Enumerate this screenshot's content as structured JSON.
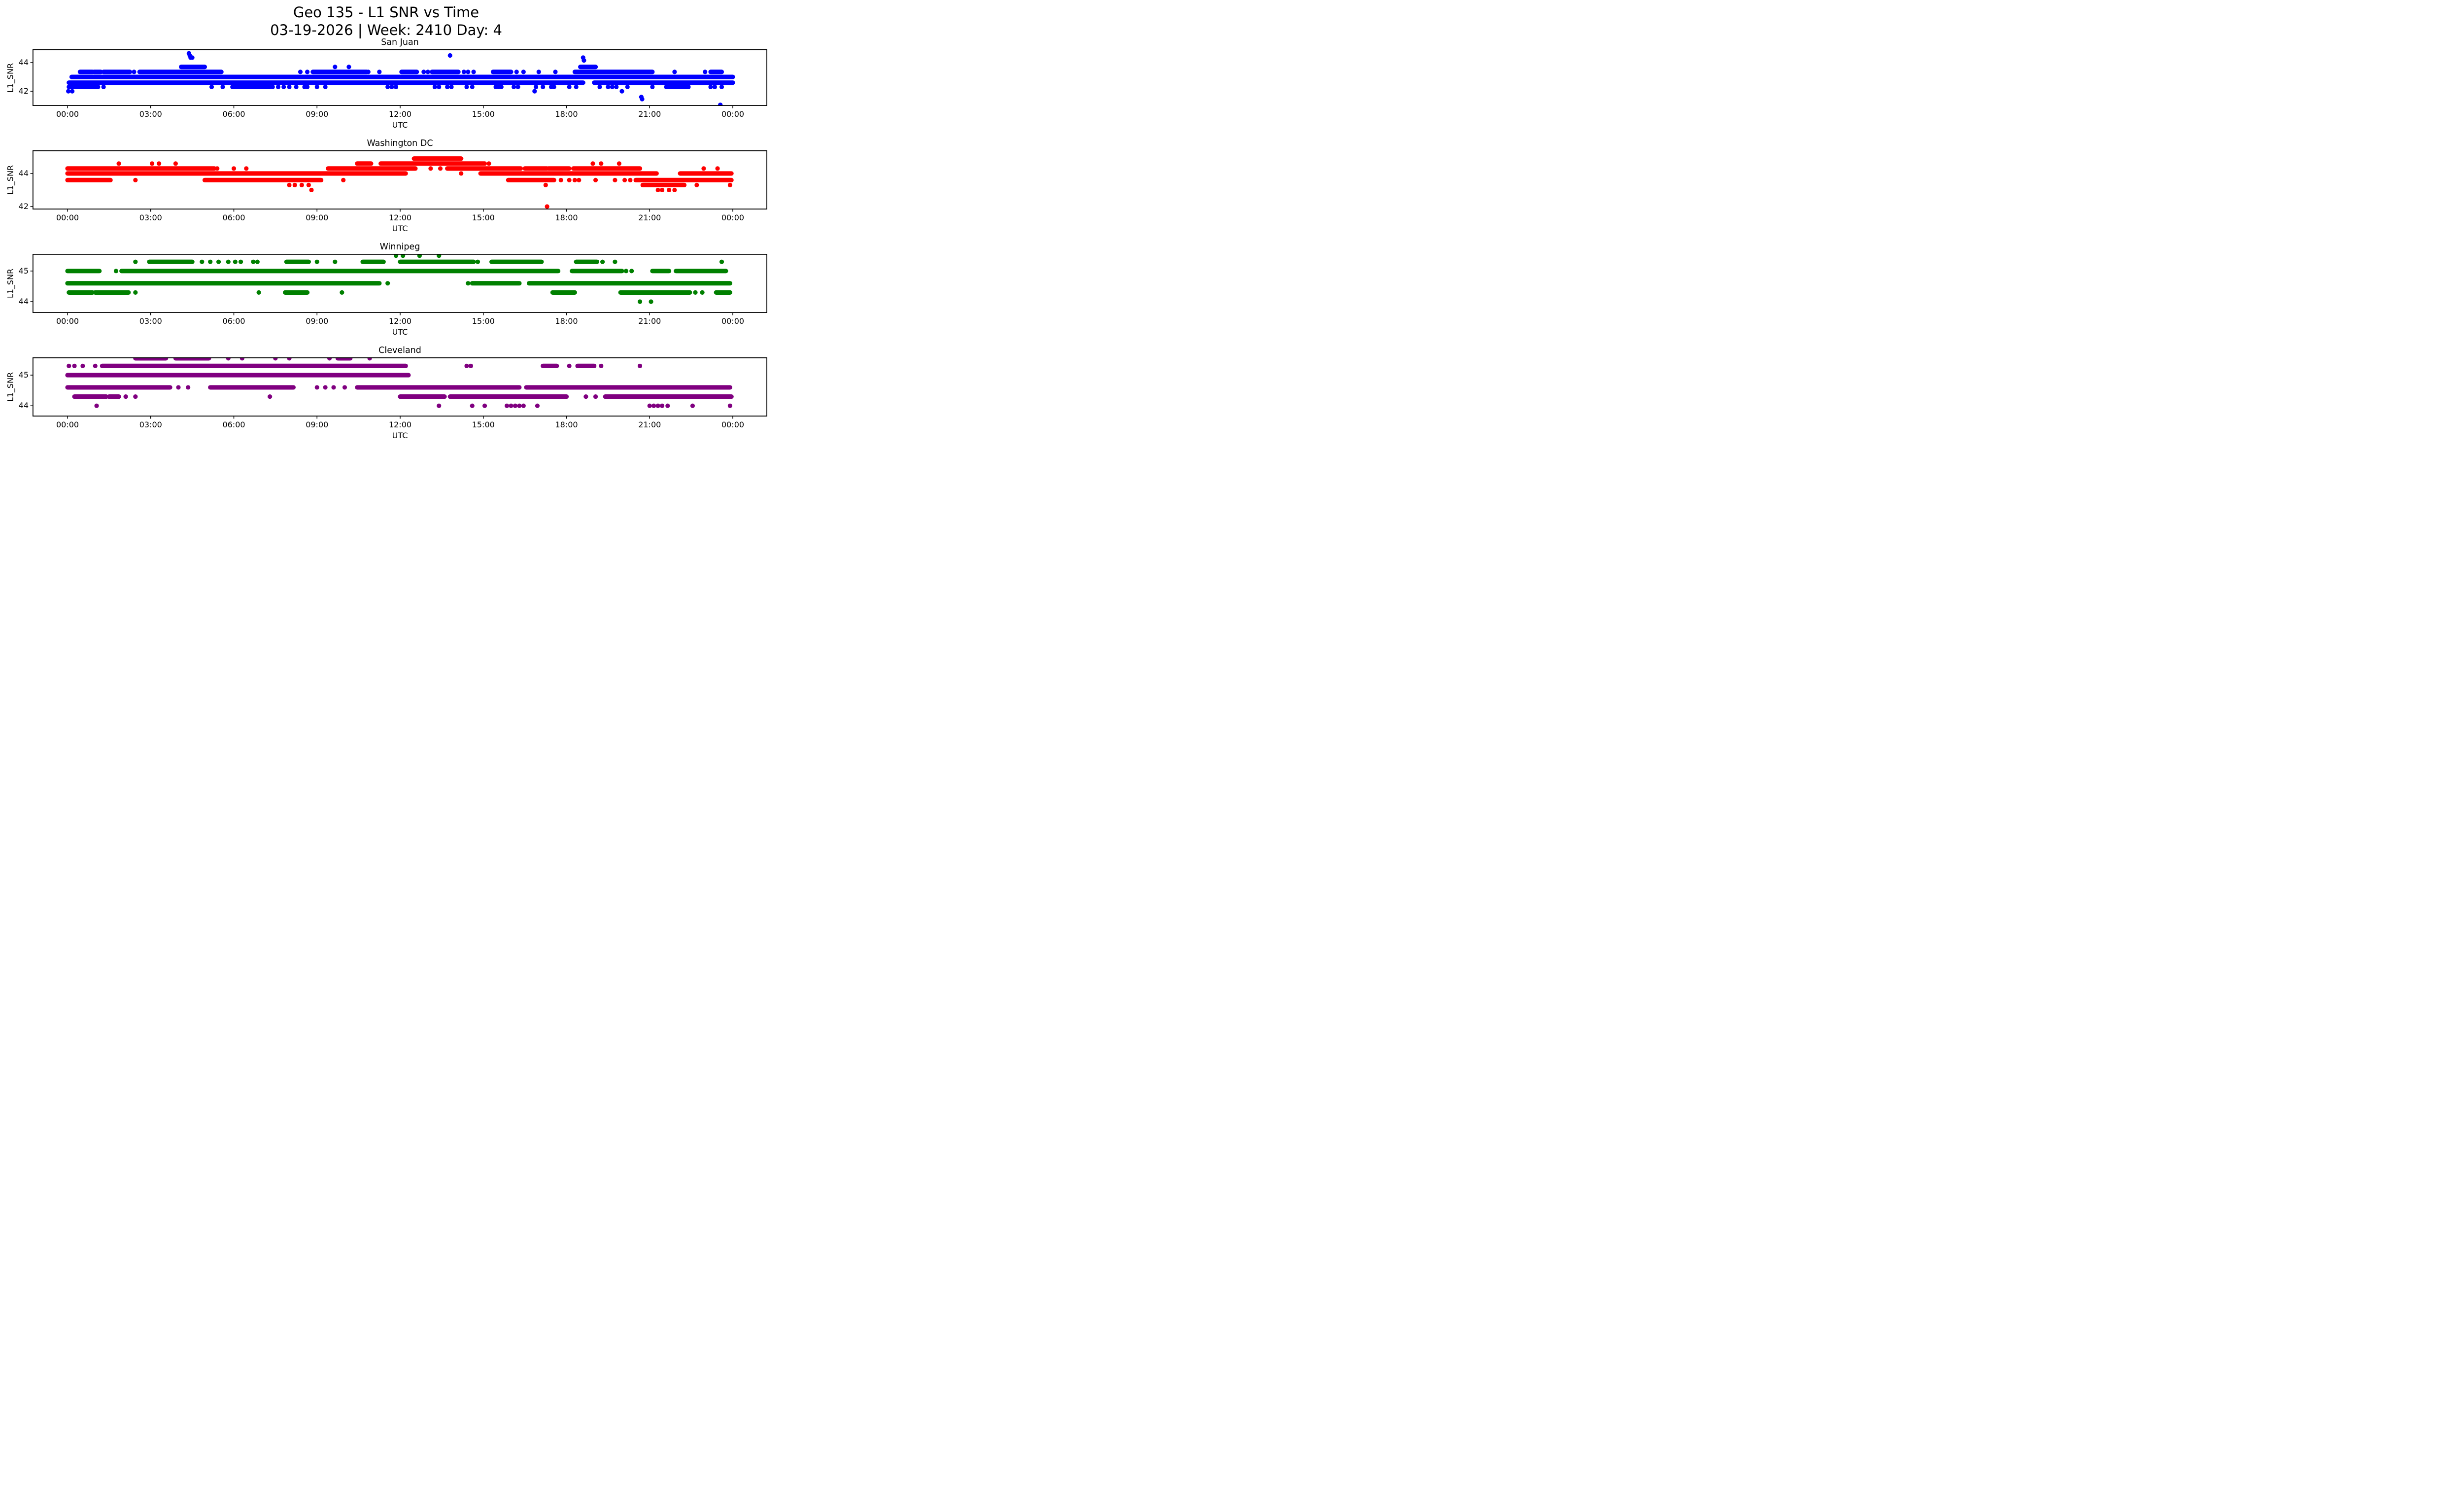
{
  "title": {
    "line1": "Geo 135 - L1 SNR vs Time",
    "line2": "03-19-2026 | Week: 2410 Day: 4"
  },
  "axis": {
    "xlabel": "UTC",
    "ylabel": "L1_SNR",
    "xtick_labels": [
      "00:00",
      "03:00",
      "06:00",
      "09:00",
      "12:00",
      "15:00",
      "18:00",
      "21:00",
      "00:00"
    ],
    "xtick_hours": [
      0,
      3,
      6,
      9,
      12,
      15,
      18,
      21,
      24
    ]
  },
  "chart_data": [
    {
      "type": "scatter",
      "title": "San Juan",
      "color": "#0000ff",
      "xlabel": "UTC",
      "ylabel": "L1_SNR",
      "ylim": [
        40.97,
        44.93
      ],
      "yticks": [
        42,
        44
      ],
      "xlim_hours": [
        0,
        24
      ],
      "bands": [
        {
          "snr": 44.65,
          "segments": [],
          "dots": [
            4.38
          ]
        },
        {
          "snr": 44.5,
          "segments": [],
          "dots": [
            4.41,
            13.8
          ]
        },
        {
          "snr": 44.35,
          "segments": [],
          "dots": [
            4.44,
            4.5,
            18.6
          ]
        },
        {
          "snr": 44.15,
          "segments": [],
          "dots": [
            18.63
          ]
        },
        {
          "snr": 43.7,
          "segments": [
            [
              4.1,
              4.95
            ],
            [
              18.5,
              19.05
            ]
          ],
          "dots": [
            9.65,
            10.15
          ]
        },
        {
          "snr": 43.35,
          "segments": [
            [
              0.45,
              0.9
            ],
            [
              0.95,
              1.2
            ],
            [
              1.3,
              2.25
            ],
            [
              2.6,
              5.55
            ],
            [
              8.85,
              10.8
            ],
            [
              12.05,
              12.6
            ],
            [
              13.15,
              14.1
            ],
            [
              15.35,
              16.0
            ],
            [
              18.3,
              21.1
            ],
            [
              23.2,
              23.6
            ]
          ],
          "dots": [
            2.4,
            8.4,
            8.65,
            10.85,
            11.25,
            12.85,
            13.0,
            14.3,
            14.45,
            14.65,
            16.2,
            16.45,
            17.0,
            17.6,
            21.9,
            23.0
          ]
        },
        {
          "snr": 43.0,
          "segments": [
            [
              0.15,
              24.0
            ]
          ],
          "dots": []
        },
        {
          "snr": 42.6,
          "segments": [
            [
              0.05,
              18.6
            ],
            [
              19.0,
              24.0
            ]
          ],
          "dots": []
        },
        {
          "snr": 42.3,
          "segments": [
            [
              0.05,
              1.1
            ],
            [
              5.95,
              7.3
            ],
            [
              21.6,
              22.4
            ]
          ],
          "dots": [
            1.3,
            5.2,
            5.6,
            7.4,
            7.6,
            7.8,
            8.0,
            8.25,
            8.55,
            8.65,
            9.0,
            9.3,
            11.55,
            11.7,
            11.85,
            13.25,
            13.4,
            13.7,
            13.85,
            14.4,
            14.6,
            15.45,
            15.55,
            15.65,
            16.1,
            16.25,
            16.9,
            17.15,
            17.45,
            17.55,
            18.1,
            18.35,
            19.2,
            19.5,
            19.65,
            19.8,
            20.2,
            21.1,
            23.2,
            23.35,
            23.6
          ]
        },
        {
          "snr": 42.0,
          "segments": [],
          "dots": [
            0.03,
            0.17,
            16.85,
            20.0
          ]
        },
        {
          "snr": 41.6,
          "segments": [],
          "dots": [
            20.7
          ]
        },
        {
          "snr": 41.45,
          "segments": [],
          "dots": [
            20.73
          ]
        },
        {
          "snr": 41.05,
          "segments": [],
          "dots": [
            23.55
          ]
        }
      ]
    },
    {
      "type": "scatter",
      "title": "Washington DC",
      "color": "#ff0000",
      "xlabel": "UTC",
      "ylabel": "L1_SNR",
      "ylim": [
        41.82,
        45.4
      ],
      "yticks": [
        42,
        44
      ],
      "xlim_hours": [
        0,
        24
      ],
      "bands": [
        {
          "snr": 44.9,
          "segments": [
            [
              12.5,
              14.2
            ]
          ],
          "dots": []
        },
        {
          "snr": 44.6,
          "segments": [
            [
              10.45,
              10.95
            ],
            [
              11.3,
              15.05
            ]
          ],
          "dots": [
            1.85,
            3.05,
            3.3,
            3.9,
            15.2,
            18.95,
            19.25,
            19.9
          ]
        },
        {
          "snr": 44.3,
          "segments": [
            [
              0.0,
              5.3
            ],
            [
              9.4,
              12.55
            ],
            [
              13.7,
              16.35
            ],
            [
              16.5,
              17.3
            ],
            [
              17.35,
              18.1
            ],
            [
              18.25,
              20.65
            ]
          ],
          "dots": [
            5.4,
            6.0,
            6.45,
            13.1,
            13.45,
            22.95,
            23.45
          ]
        },
        {
          "snr": 44.0,
          "segments": [
            [
              0.0,
              12.2
            ],
            [
              14.9,
              21.25
            ],
            [
              22.1,
              23.95
            ]
          ],
          "dots": [
            14.2
          ]
        },
        {
          "snr": 43.6,
          "segments": [
            [
              0.0,
              1.55
            ],
            [
              4.95,
              9.15
            ],
            [
              15.9,
              17.55
            ],
            [
              20.5,
              23.95
            ]
          ],
          "dots": [
            2.45,
            9.95,
            17.8,
            18.1,
            18.3,
            18.45,
            19.05,
            19.75,
            20.1,
            20.3
          ]
        },
        {
          "snr": 43.3,
          "segments": [
            [
              20.75,
              22.25
            ]
          ],
          "dots": [
            8.0,
            8.2,
            8.45,
            8.7,
            17.25,
            22.7,
            23.9
          ]
        },
        {
          "snr": 43.0,
          "segments": [],
          "dots": [
            8.8,
            21.3,
            21.45,
            21.7,
            21.9
          ]
        },
        {
          "snr": 42.0,
          "segments": [],
          "dots": [
            17.3
          ]
        }
      ]
    },
    {
      "type": "scatter",
      "title": "Winnipeg",
      "color": "#008000",
      "xlabel": "UTC",
      "ylabel": "L1_SNR",
      "ylim": [
        43.63,
        45.56
      ],
      "yticks": [
        44,
        45
      ],
      "xlim_hours": [
        0,
        24
      ],
      "bands": [
        {
          "snr": 45.5,
          "segments": [],
          "dots": [
            11.85,
            12.1,
            12.7,
            13.4
          ]
        },
        {
          "snr": 45.3,
          "segments": [
            [
              2.95,
              4.5
            ],
            [
              7.9,
              8.7
            ],
            [
              10.65,
              11.4
            ],
            [
              12.0,
              14.65
            ],
            [
              15.3,
              17.1
            ],
            [
              18.35,
              19.1
            ]
          ],
          "dots": [
            2.45,
            4.85,
            5.15,
            5.45,
            5.8,
            6.05,
            6.25,
            6.7,
            6.85,
            9.0,
            9.65,
            14.8,
            19.3,
            19.75,
            23.6
          ]
        },
        {
          "snr": 45.0,
          "segments": [
            [
              0.0,
              1.15
            ],
            [
              1.95,
              17.7
            ],
            [
              18.2,
              20.0
            ],
            [
              21.1,
              21.7
            ],
            [
              21.95,
              23.75
            ]
          ],
          "dots": [
            1.75,
            20.15,
            20.35
          ]
        },
        {
          "snr": 44.6,
          "segments": [
            [
              0.0,
              11.25
            ],
            [
              14.6,
              16.3
            ],
            [
              16.65,
              23.9
            ]
          ],
          "dots": [
            11.55,
            14.45
          ]
        },
        {
          "snr": 44.3,
          "segments": [
            [
              0.05,
              0.9
            ],
            [
              1.0,
              2.2
            ],
            [
              7.85,
              8.65
            ],
            [
              17.5,
              18.3
            ],
            [
              19.95,
              22.45
            ],
            [
              23.4,
              23.9
            ]
          ],
          "dots": [
            2.45,
            6.9,
            9.9,
            22.65,
            22.9
          ]
        },
        {
          "snr": 44.0,
          "segments": [],
          "dots": [
            20.65,
            21.05
          ]
        }
      ]
    },
    {
      "type": "scatter",
      "title": "Cleveland",
      "color": "#800080",
      "xlabel": "UTC",
      "ylabel": "L1_SNR",
      "ylim": [
        43.65,
        45.58
      ],
      "yticks": [
        44,
        45
      ],
      "xlim_hours": [
        0,
        24
      ],
      "bands": [
        {
          "snr": 45.55,
          "segments": [
            [
              2.45,
              3.55
            ],
            [
              3.9,
              5.1
            ],
            [
              9.75,
              10.2
            ]
          ],
          "dots": [
            5.8,
            6.3,
            7.5,
            8.0,
            9.45,
            10.9
          ]
        },
        {
          "snr": 45.3,
          "segments": [
            [
              1.25,
              12.2
            ],
            [
              17.15,
              17.65
            ],
            [
              18.4,
              19.0
            ]
          ],
          "dots": [
            0.05,
            0.25,
            0.55,
            1.0,
            14.4,
            14.55,
            18.1,
            19.25,
            20.65
          ]
        },
        {
          "snr": 45.0,
          "segments": [
            [
              0.0,
              12.3
            ]
          ],
          "dots": []
        },
        {
          "snr": 44.6,
          "segments": [
            [
              0.0,
              3.7
            ],
            [
              5.15,
              8.15
            ],
            [
              10.45,
              16.3
            ],
            [
              16.55,
              23.9
            ]
          ],
          "dots": [
            4.0,
            4.35,
            9.0,
            9.3,
            9.6,
            10.0
          ]
        },
        {
          "snr": 44.3,
          "segments": [
            [
              0.25,
              1.4
            ],
            [
              1.5,
              1.85
            ],
            [
              12.0,
              13.6
            ],
            [
              13.8,
              18.0
            ],
            [
              19.4,
              23.95
            ]
          ],
          "dots": [
            2.1,
            2.45,
            7.3,
            18.7,
            19.05
          ]
        },
        {
          "snr": 44.0,
          "segments": [],
          "dots": [
            1.05,
            13.4,
            14.6,
            15.05,
            15.85,
            16.0,
            16.15,
            16.3,
            16.45,
            16.95,
            21.0,
            21.15,
            21.3,
            21.45,
            21.65,
            22.55,
            23.9
          ]
        }
      ]
    }
  ]
}
